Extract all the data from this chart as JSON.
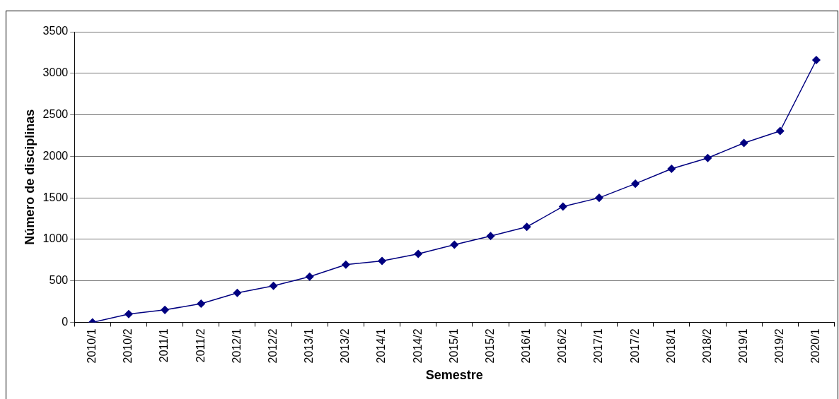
{
  "chart_data": {
    "type": "line",
    "xlabel": "Semestre",
    "ylabel": "Número de disciplinas",
    "categories": [
      "2010/1",
      "2010/2",
      "2011/1",
      "2011/2",
      "2012/1",
      "2012/2",
      "2013/1",
      "2013/2",
      "2014/1",
      "2014/2",
      "2015/1",
      "2015/2",
      "2016/1",
      "2016/2",
      "2017/1",
      "2017/2",
      "2018/1",
      "2018/2",
      "2019/1",
      "2019/2",
      "2020/1"
    ],
    "series": [
      {
        "color": "#000080",
        "values": [
          0,
          100,
          150,
          225,
          355,
          440,
          550,
          695,
          740,
          825,
          935,
          1040,
          1150,
          1395,
          1500,
          1670,
          1850,
          1980,
          2160,
          2305,
          3160
        ]
      }
    ],
    "ylim": [
      0,
      3500
    ],
    "yticks": [
      0,
      500,
      1000,
      1500,
      2000,
      2500,
      3000,
      3500
    ],
    "grid": "y",
    "legend": false,
    "marker": "diamond",
    "line_style": "solid"
  }
}
